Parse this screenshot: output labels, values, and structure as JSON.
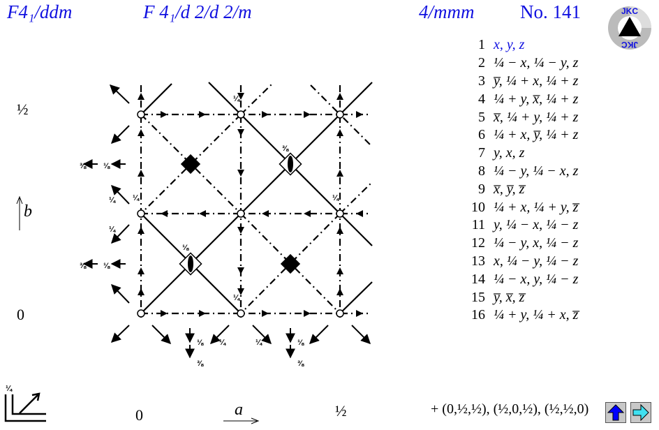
{
  "header": {
    "short_symbol": "F4₁/ddm",
    "full_symbol": "F 4₁/d 2/d 2/m",
    "point_group": "4/mmm",
    "number": "No. 141"
  },
  "logo_text": "JKC",
  "colors": {
    "accent": "#1010e0",
    "button_face": "#c8c8c8",
    "up_arrow": "#0000ff",
    "right_arrow": "#40e0f0"
  },
  "axes": {
    "b_top": "½",
    "b_label": "b",
    "b_zero": "0",
    "a_zero": "0",
    "a_label": "a",
    "a_half": "½",
    "corner_height": "¼"
  },
  "diagram_labels": [
    "¼",
    "¼",
    "¼",
    "¼",
    "⅜",
    "⅛",
    "⅜",
    "⅛",
    "⅜",
    "⅛",
    "¼",
    "¼",
    "⅛",
    "⅜",
    "¼",
    "¼",
    "⅛",
    "⅜"
  ],
  "positions": [
    {
      "n": "1",
      "coord": "x, y, z"
    },
    {
      "n": "2",
      "coord": "¼ − x, ¼ − y, z"
    },
    {
      "n": "3",
      "coord": "y̅, ¼ + x, ¼ + z"
    },
    {
      "n": "4",
      "coord": "¼ + y, x̅, ¼ + z"
    },
    {
      "n": "5",
      "coord": "x̅, ¼ + y, ¼ + z"
    },
    {
      "n": "6",
      "coord": "¼ + x, y̅, ¼ + z"
    },
    {
      "n": "7",
      "coord": "y, x, z"
    },
    {
      "n": "8",
      "coord": "¼ − y, ¼ − x, z"
    },
    {
      "n": "9",
      "coord": "x̅, y̅, z̅"
    },
    {
      "n": "10",
      "coord": "¼ + x, ¼ + y, z̅"
    },
    {
      "n": "11",
      "coord": "y, ¼ − x, ¼ − z"
    },
    {
      "n": "12",
      "coord": "¼ − y, x, ¼ − z"
    },
    {
      "n": "13",
      "coord": "x, ¼ − y, ¼ − z"
    },
    {
      "n": "14",
      "coord": "¼ − x, y, ¼ − z"
    },
    {
      "n": "15",
      "coord": "y̅, x̅, z̅"
    },
    {
      "n": "16",
      "coord": "¼ + y, ¼ + x, z̅"
    }
  ],
  "centering": "+ (0,½,½), (½,0,½), (½,½,0)",
  "buttons": {
    "up": "up-arrow",
    "next": "right-arrow"
  }
}
